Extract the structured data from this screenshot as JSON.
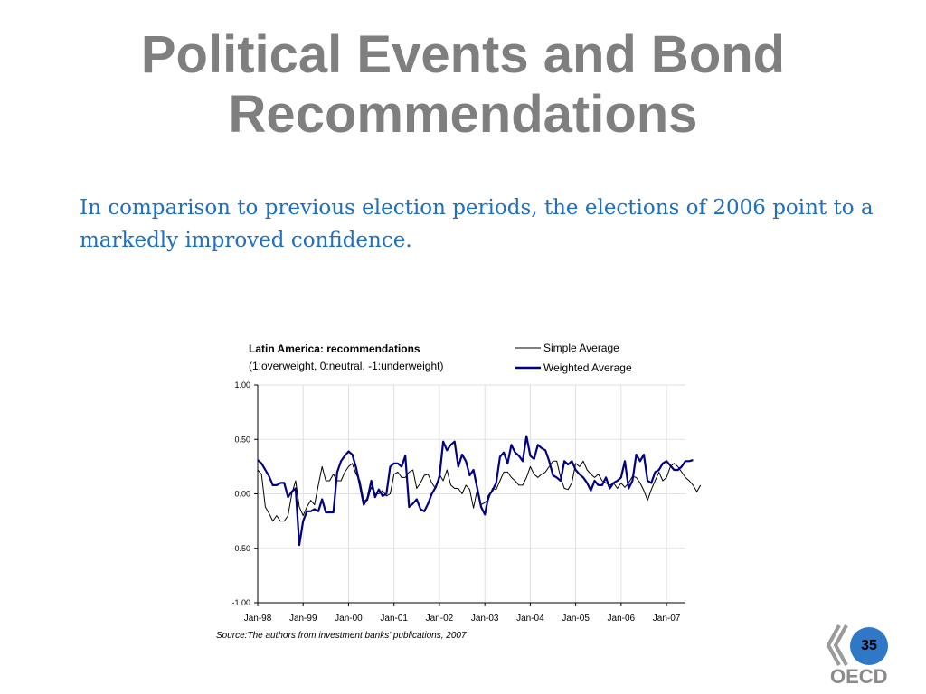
{
  "slide": {
    "title_line1": "Political Events and Bond",
    "title_line2": "Recommendations",
    "intro": "In comparison to previous election periods, the elections of 2006 point to a markedly improved confidence.",
    "page_number": "35",
    "logo_text": "OECD"
  },
  "chart_data": {
    "type": "line",
    "title": "Latin America: recommendations",
    "subtitle": "(1:overweight, 0:neutral, -1:underweight)",
    "source": "Source:The authors from investment banks' publications, 2007",
    "ylim": [
      -1.0,
      1.0
    ],
    "yticks": [
      "1.00",
      "0.50",
      "0.00",
      "-0.50",
      "-1.00"
    ],
    "ytick_values": [
      1.0,
      0.5,
      0.0,
      -0.5,
      -1.0
    ],
    "xticks": [
      "Jan-98",
      "Jan-99",
      "Jan-00",
      "Jan-01",
      "Jan-02",
      "Jan-03",
      "Jan-04",
      "Jan-05",
      "Jan-06",
      "Jan-07"
    ],
    "xlim": [
      0,
      113
    ],
    "grid": true,
    "legend_position": "top-right",
    "series": [
      {
        "name": "Simple Average",
        "color": "#000000",
        "values": [
          0.22,
          0.18,
          -0.12,
          -0.18,
          -0.25,
          -0.2,
          -0.25,
          -0.25,
          -0.2,
          0.0,
          0.12,
          -0.12,
          -0.2,
          -0.12,
          -0.06,
          -0.1,
          0.08,
          0.25,
          0.12,
          0.12,
          0.18,
          0.12,
          0.12,
          0.2,
          0.25,
          0.28,
          0.18,
          0.12,
          -0.06,
          -0.06,
          0.06,
          0.0,
          0.0,
          0.03,
          -0.02,
          0.0,
          0.18,
          0.2,
          0.15,
          0.15,
          0.2,
          0.22,
          0.05,
          0.1,
          0.17,
          0.18,
          0.1,
          0.05,
          0.18,
          0.12,
          0.22,
          0.08,
          0.05,
          0.05,
          0.0,
          0.08,
          0.04,
          -0.13,
          0.04,
          -0.1,
          -0.08,
          -0.05,
          0.05,
          0.04,
          0.12,
          0.2,
          0.2,
          0.15,
          0.12,
          0.08,
          0.08,
          0.15,
          0.25,
          0.18,
          0.15,
          0.18,
          0.2,
          0.25,
          0.3,
          0.3,
          0.15,
          0.05,
          0.04,
          0.1,
          0.28,
          0.25,
          0.3,
          0.22,
          0.18,
          0.15,
          0.18,
          0.12,
          0.1,
          0.08,
          0.1,
          0.05,
          0.1,
          0.06,
          0.1,
          0.16,
          0.15,
          0.1,
          0.03,
          -0.06,
          0.04,
          0.12,
          0.2,
          0.12,
          0.15,
          0.25,
          0.28,
          0.25,
          0.2,
          0.15,
          0.12,
          0.08,
          0.02,
          0.08
        ]
      },
      {
        "name": "Weighted Average",
        "color": "#000080",
        "values": [
          0.31,
          0.28,
          0.22,
          0.16,
          0.08,
          0.08,
          0.1,
          0.1,
          -0.03,
          0.02,
          0.05,
          -0.47,
          -0.25,
          -0.16,
          -0.16,
          -0.14,
          -0.16,
          -0.05,
          -0.17,
          -0.17,
          -0.17,
          0.2,
          0.3,
          0.35,
          0.39,
          0.36,
          0.24,
          0.08,
          -0.1,
          -0.04,
          0.12,
          -0.03,
          0.04,
          -0.02,
          0.0,
          0.25,
          0.28,
          0.28,
          0.25,
          0.35,
          -0.12,
          -0.09,
          -0.05,
          -0.14,
          -0.16,
          -0.09,
          0.0,
          0.06,
          0.15,
          0.48,
          0.4,
          0.45,
          0.48,
          0.25,
          0.36,
          0.3,
          0.17,
          0.22,
          0.05,
          -0.12,
          -0.19,
          -0.02,
          0.03,
          0.1,
          0.34,
          0.38,
          0.28,
          0.45,
          0.38,
          0.35,
          0.3,
          0.53,
          0.35,
          0.32,
          0.45,
          0.42,
          0.4,
          0.3,
          0.17,
          0.15,
          0.12,
          0.3,
          0.27,
          0.3,
          0.22,
          0.18,
          0.15,
          0.1,
          0.03,
          0.12,
          0.08,
          0.08,
          0.15,
          0.05,
          0.1,
          0.12,
          0.15,
          0.3,
          0.05,
          0.12,
          0.36,
          0.3,
          0.36,
          0.12,
          0.1,
          0.2,
          0.22,
          0.28,
          0.3,
          0.26,
          0.22,
          0.22,
          0.25,
          0.3,
          0.3,
          0.31
        ]
      }
    ]
  }
}
